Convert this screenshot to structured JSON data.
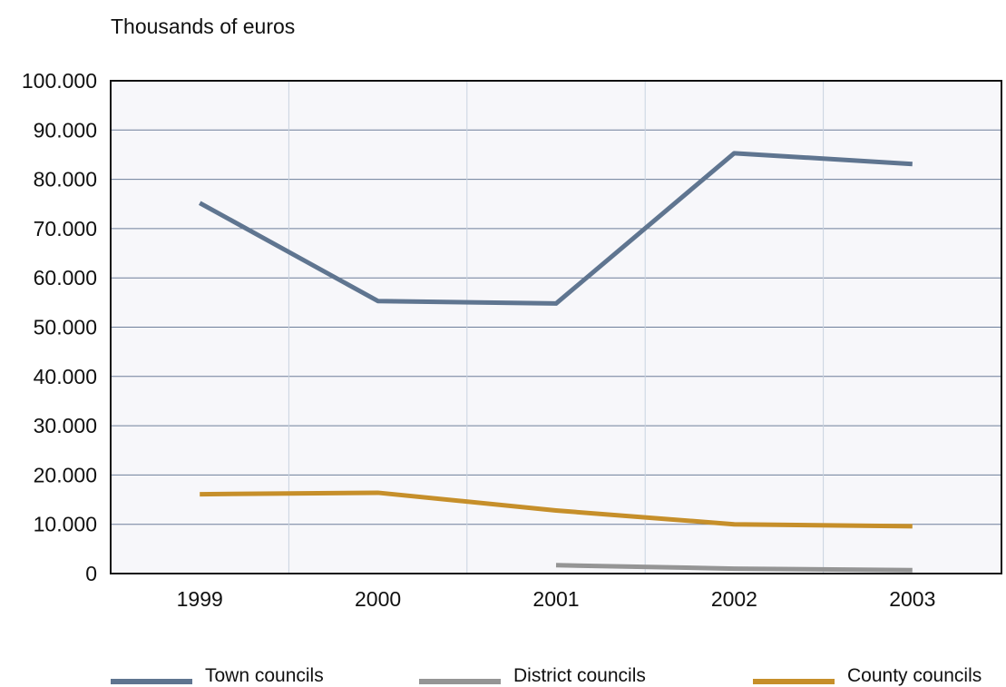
{
  "chart_data": {
    "type": "line",
    "ylabel": "Thousands of euros",
    "categories": [
      "1999",
      "2000",
      "2001",
      "2002",
      "2003"
    ],
    "ylim": [
      0,
      100000
    ],
    "yticks": [
      "0",
      "10.000",
      "20.000",
      "30.000",
      "40.000",
      "50.000",
      "60.000",
      "70.000",
      "80.000",
      "90.000",
      "100.000"
    ],
    "grid": true,
    "legend_position": "bottom",
    "series": [
      {
        "name": "Town councils",
        "color": "#5f7590",
        "values": [
          75200,
          55300,
          54800,
          85300,
          83100
        ]
      },
      {
        "name": "District councils",
        "color": "#959595",
        "values": [
          null,
          null,
          1700,
          1000,
          700
        ]
      },
      {
        "name": "County councils",
        "color": "#c68f2a",
        "values": [
          16100,
          16400,
          12800,
          10000,
          9600
        ]
      }
    ]
  }
}
